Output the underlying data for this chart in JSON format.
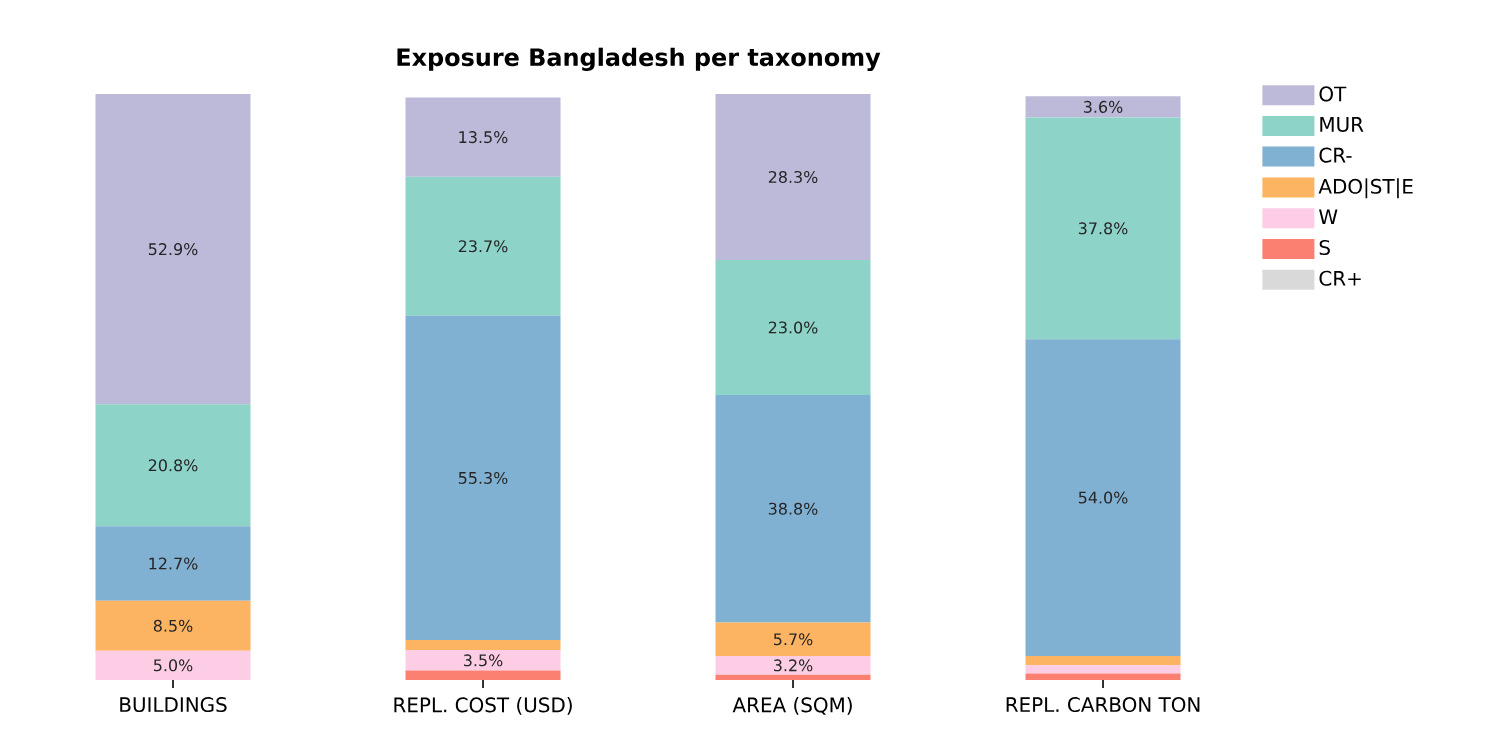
{
  "chart_data": {
    "type": "bar",
    "stacked": true,
    "title": "Exposure Bangladesh per taxonomy",
    "categories": [
      "BUILDINGS",
      "REPL. COST (USD)",
      "AREA (SQM)",
      "REPL. CARBON TON"
    ],
    "legend": "top right",
    "series": [
      {
        "name": "CR+",
        "color": "#d9d9d9",
        "values": [
          0,
          0,
          0,
          0
        ],
        "value_labels": [
          null,
          null,
          null,
          null
        ]
      },
      {
        "name": "S",
        "color": "#fb8072",
        "values": [
          0,
          1.6,
          0.9,
          1.1
        ],
        "value_labels": [
          null,
          null,
          null,
          null
        ]
      },
      {
        "name": "W",
        "color": "#fccde5",
        "values": [
          5.0,
          3.5,
          3.2,
          1.4
        ],
        "value_labels": [
          "5.0%",
          "3.5%",
          "3.2%",
          null
        ]
      },
      {
        "name": "ADO|ST|E",
        "color": "#fdb462",
        "values": [
          8.5,
          1.7,
          5.7,
          1.6
        ],
        "value_labels": [
          "8.5%",
          null,
          "5.7%",
          null
        ]
      },
      {
        "name": "CR-",
        "color": "#80b1d3",
        "values": [
          12.7,
          55.3,
          38.8,
          54.0
        ],
        "value_labels": [
          "12.7%",
          "55.3%",
          "38.8%",
          "54.0%"
        ]
      },
      {
        "name": "MUR",
        "color": "#8dd3c7",
        "values": [
          20.8,
          23.7,
          23.0,
          37.8
        ],
        "value_labels": [
          "20.8%",
          "23.7%",
          "23.0%",
          "37.8%"
        ]
      },
      {
        "name": "OT",
        "color": "#bcb9d9",
        "values": [
          52.9,
          13.5,
          28.3,
          3.6
        ],
        "value_labels": [
          "52.9%",
          "13.5%",
          "28.3%",
          "3.6%"
        ]
      }
    ]
  }
}
